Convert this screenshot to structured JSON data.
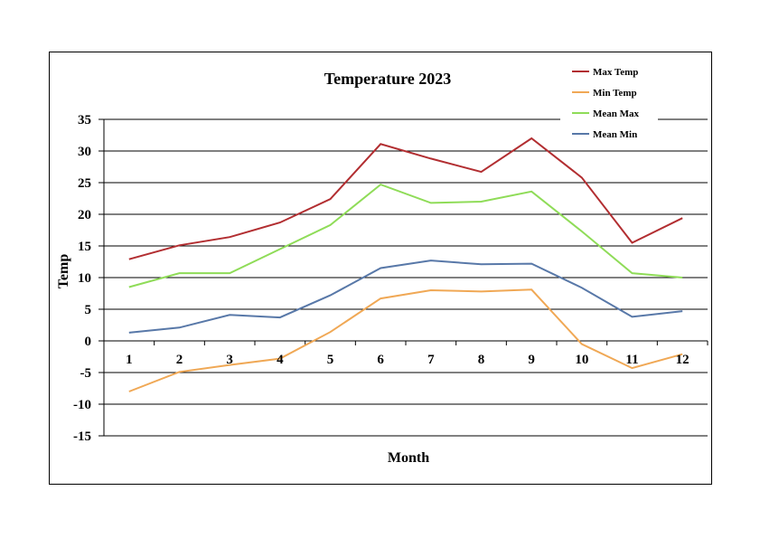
{
  "chart_data": {
    "type": "line",
    "title": "Temperature 2023",
    "xlabel": "Month",
    "ylabel": "Temp",
    "categories": [
      "1",
      "2",
      "3",
      "4",
      "5",
      "6",
      "7",
      "8",
      "9",
      "10",
      "11",
      "12"
    ],
    "ylim": [
      -15,
      35
    ],
    "yticks": [
      35,
      30,
      25,
      20,
      15,
      10,
      5,
      0,
      -5,
      -10,
      -15
    ],
    "grid": true,
    "legend_position": "top-right",
    "series": [
      {
        "name": "Max Temp",
        "color": "#b22e31",
        "values": [
          12.9,
          15.1,
          16.4,
          18.7,
          22.4,
          31.1,
          28.8,
          26.7,
          32.0,
          25.8,
          15.5,
          19.4
        ]
      },
      {
        "name": "Min Temp",
        "color": "#f0a855",
        "values": [
          -8.0,
          -4.9,
          -3.8,
          -2.8,
          1.4,
          6.7,
          8.0,
          7.8,
          8.1,
          -0.5,
          -4.3,
          -2.1
        ]
      },
      {
        "name": "Mean Max",
        "color": "#8fdc58",
        "values": [
          8.5,
          10.7,
          10.7,
          14.5,
          18.3,
          24.7,
          21.8,
          22.0,
          23.6,
          17.3,
          10.7,
          10.0
        ]
      },
      {
        "name": "Mean Min",
        "color": "#5878a8",
        "values": [
          1.3,
          2.1,
          4.1,
          3.7,
          7.2,
          11.5,
          12.7,
          12.1,
          12.2,
          8.4,
          3.8,
          4.7
        ]
      }
    ]
  }
}
